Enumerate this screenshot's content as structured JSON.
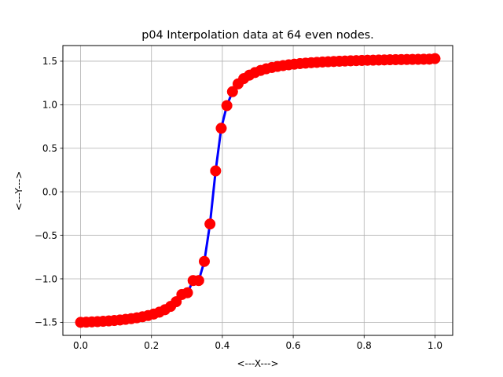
{
  "chart_data": {
    "type": "line",
    "title": "p04 Interpolation data at 64 even nodes.",
    "xlabel": "<---X--->",
    "ylabel": "<---Y--->",
    "xlim": [
      -0.05,
      1.05
    ],
    "ylim": [
      -1.65,
      1.68
    ],
    "xticks": [
      0.0,
      0.2,
      0.4,
      0.6,
      0.8,
      1.0
    ],
    "xtick_labels": [
      "0.0",
      "0.2",
      "0.4",
      "0.6",
      "0.8",
      "1.0"
    ],
    "yticks": [
      -1.5,
      -1.0,
      -0.5,
      0.0,
      0.5,
      1.0,
      1.5
    ],
    "ytick_labels": [
      "−1.5",
      "−1.0",
      "−0.5",
      "0.0",
      "0.5",
      "1.0",
      "1.5"
    ],
    "grid": true,
    "series": [
      {
        "line_color": "#0000ff",
        "marker_color": "#ff0000",
        "x": [
          0.0,
          0.0159,
          0.0317,
          0.0476,
          0.0635,
          0.0794,
          0.0952,
          0.1111,
          0.127,
          0.1429,
          0.1587,
          0.1746,
          0.1905,
          0.2063,
          0.2222,
          0.2381,
          0.254,
          0.2698,
          0.2857,
          0.3016,
          0.3175,
          0.3333,
          0.3492,
          0.3651,
          0.381,
          0.3968,
          0.4127,
          0.4286,
          0.4444,
          0.4603,
          0.4762,
          0.4921,
          0.5079,
          0.5238,
          0.5397,
          0.5556,
          0.5714,
          0.5873,
          0.6032,
          0.619,
          0.6349,
          0.6508,
          0.6667,
          0.6825,
          0.6984,
          0.7143,
          0.7302,
          0.746,
          0.7619,
          0.7778,
          0.7937,
          0.8095,
          0.8254,
          0.8413,
          0.8571,
          0.873,
          0.8889,
          0.9048,
          0.9206,
          0.9365,
          0.9524,
          0.9683,
          0.9841,
          1.0
        ],
        "y": [
          -1.5,
          -1.498,
          -1.495,
          -1.492,
          -1.488,
          -1.484,
          -1.479,
          -1.473,
          -1.466,
          -1.458,
          -1.448,
          -1.436,
          -1.422,
          -1.405,
          -1.383,
          -1.355,
          -1.317,
          -1.263,
          -1.18,
          -1.16,
          -1.02,
          -1.02,
          -0.8,
          -0.37,
          0.24,
          0.73,
          0.99,
          1.15,
          1.24,
          1.3,
          1.34,
          1.37,
          1.394,
          1.413,
          1.428,
          1.44,
          1.45,
          1.459,
          1.466,
          1.473,
          1.478,
          1.483,
          1.487,
          1.491,
          1.494,
          1.497,
          1.5,
          1.502,
          1.505,
          1.507,
          1.509,
          1.511,
          1.512,
          1.514,
          1.515,
          1.517,
          1.518,
          1.519,
          1.52,
          1.521,
          1.522,
          1.523,
          1.524,
          1.53
        ]
      }
    ]
  }
}
